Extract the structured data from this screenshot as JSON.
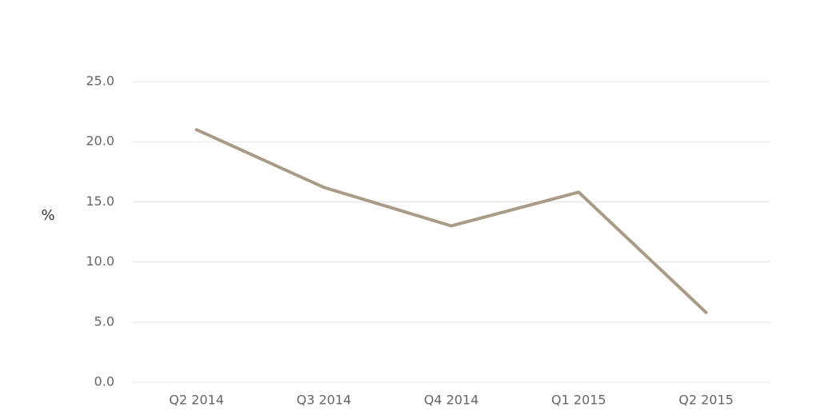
{
  "chart_data": {
    "type": "line",
    "y_label": "%",
    "categories": [
      "Q2 2014",
      "Q3 2014",
      "Q4 2014",
      "Q1 2015",
      "Q2 2015"
    ],
    "values": [
      21.0,
      16.2,
      13.0,
      15.8,
      5.8
    ],
    "color": "#a89b87",
    "ylim": [
      0,
      25
    ],
    "yticks": [
      {
        "value": 0,
        "label": "0.0"
      },
      {
        "value": 5,
        "label": "5.0"
      },
      {
        "value": 10,
        "label": "10.0"
      },
      {
        "value": 15,
        "label": "15.0"
      },
      {
        "value": 20,
        "label": "20.0"
      },
      {
        "value": 25,
        "label": "25.0"
      }
    ],
    "grid": true
  }
}
